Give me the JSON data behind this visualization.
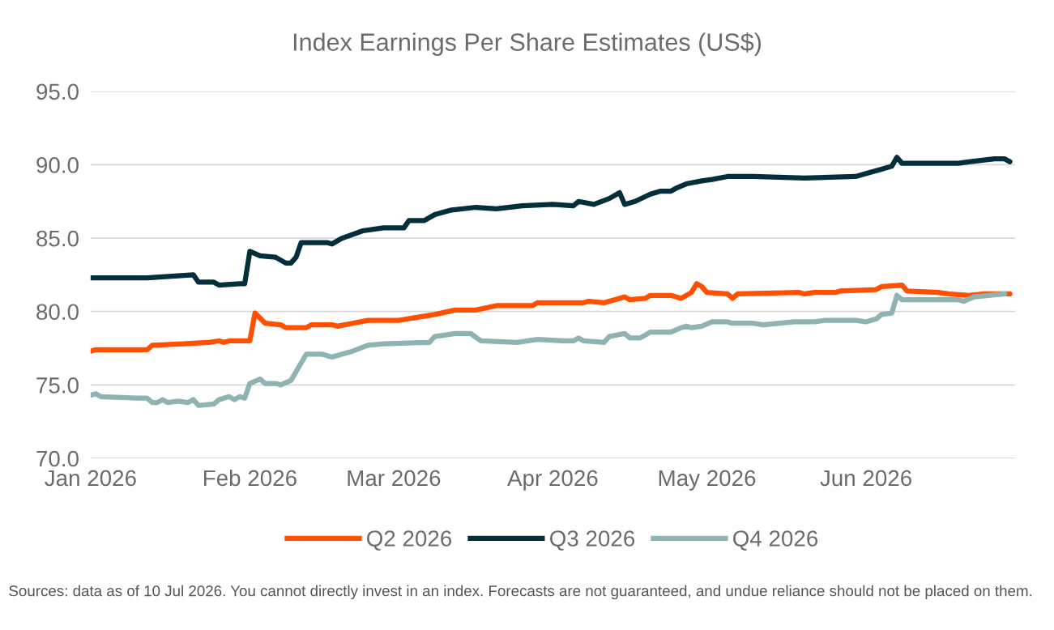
{
  "chart_data": {
    "type": "line",
    "title": "Index Earnings Per Share Estimates (US$)",
    "ylim": [
      70,
      95
    ],
    "yticks": [
      {
        "value": 70,
        "label": "70.0"
      },
      {
        "value": 75,
        "label": "75.0"
      },
      {
        "value": 80,
        "label": "80.0"
      },
      {
        "value": 85,
        "label": "85.0"
      },
      {
        "value": 90,
        "label": "90.0"
      },
      {
        "value": 95,
        "label": "95.0"
      }
    ],
    "xlim": [
      "2026-01-01",
      "2026-06-30"
    ],
    "xticks": [
      {
        "value": "2026-01-01",
        "label": "Jan 2026"
      },
      {
        "value": "2026-02-01",
        "label": "Feb 2026"
      },
      {
        "value": "2026-03-01",
        "label": "Mar 2026"
      },
      {
        "value": "2026-04-01",
        "label": "Apr 2026"
      },
      {
        "value": "2026-05-01",
        "label": "May 2026"
      },
      {
        "value": "2026-06-01",
        "label": "Jun 2026"
      }
    ],
    "grid": "y",
    "legend": "bottom",
    "marker": "none",
    "line_style": "solid",
    "annotations": [
      "Sources: data as of 10 Jul 2026. You cannot directly invest in an index. Forecasts are not guaranteed, and undue reliance should not be placed on them."
    ],
    "series": [
      {
        "name": "Q2 2026",
        "color": "#fe5000",
        "x": [
          "2026-01-01",
          "2026-01-02",
          "2026-01-12",
          "2026-01-13",
          "2026-01-19",
          "2026-01-24",
          "2026-01-26",
          "2026-01-27",
          "2026-01-28",
          "2026-02-01",
          "2026-02-02",
          "2026-02-04",
          "2026-02-07",
          "2026-02-08",
          "2026-02-12",
          "2026-02-13",
          "2026-02-17",
          "2026-02-18",
          "2026-02-21",
          "2026-02-24",
          "2026-03-02",
          "2026-03-09",
          "2026-03-13",
          "2026-03-17",
          "2026-03-21",
          "2026-03-28",
          "2026-03-29",
          "2026-04-07",
          "2026-04-08",
          "2026-04-11",
          "2026-04-14",
          "2026-04-15",
          "2026-04-16",
          "2026-04-19",
          "2026-04-20",
          "2026-04-24",
          "2026-04-26",
          "2026-04-28",
          "2026-04-29",
          "2026-04-30",
          "2026-05-01",
          "2026-05-05",
          "2026-05-06",
          "2026-05-07",
          "2026-05-19",
          "2026-05-20",
          "2026-05-22",
          "2026-05-26",
          "2026-05-27",
          "2026-06-03",
          "2026-06-04",
          "2026-06-08",
          "2026-06-09",
          "2026-06-15",
          "2026-06-17",
          "2026-06-21",
          "2026-06-24",
          "2026-06-29"
        ],
        "values": [
          77.3,
          77.4,
          77.4,
          77.7,
          77.8,
          77.9,
          78.0,
          77.9,
          78.0,
          78.0,
          79.9,
          79.2,
          79.1,
          78.9,
          78.9,
          79.1,
          79.1,
          79.0,
          79.2,
          79.4,
          79.4,
          79.8,
          80.1,
          80.1,
          80.4,
          80.4,
          80.6,
          80.6,
          80.7,
          80.6,
          80.9,
          81.0,
          80.8,
          80.9,
          81.1,
          81.1,
          80.9,
          81.3,
          81.9,
          81.7,
          81.3,
          81.2,
          80.9,
          81.2,
          81.3,
          81.2,
          81.3,
          81.3,
          81.4,
          81.5,
          81.7,
          81.8,
          81.4,
          81.3,
          81.2,
          81.1,
          81.2,
          81.2
        ]
      },
      {
        "name": "Q3 2026",
        "color": "#022f3a",
        "x": [
          "2026-01-01",
          "2026-01-12",
          "2026-01-21",
          "2026-01-22",
          "2026-01-25",
          "2026-01-26",
          "2026-01-30",
          "2026-01-31",
          "2026-02-01",
          "2026-02-03",
          "2026-02-06",
          "2026-02-08",
          "2026-02-09",
          "2026-02-10",
          "2026-02-11",
          "2026-02-16",
          "2026-02-17",
          "2026-02-19",
          "2026-02-23",
          "2026-02-27",
          "2026-03-03",
          "2026-03-04",
          "2026-03-07",
          "2026-03-09",
          "2026-03-12",
          "2026-03-17",
          "2026-03-21",
          "2026-03-26",
          "2026-04-01",
          "2026-04-05",
          "2026-04-06",
          "2026-04-09",
          "2026-04-12",
          "2026-04-14",
          "2026-04-15",
          "2026-04-17",
          "2026-04-20",
          "2026-04-22",
          "2026-04-24",
          "2026-04-25",
          "2026-04-27",
          "2026-04-30",
          "2026-05-02",
          "2026-05-05",
          "2026-05-10",
          "2026-05-20",
          "2026-05-30",
          "2026-06-01",
          "2026-06-04",
          "2026-06-06",
          "2026-06-07",
          "2026-06-08",
          "2026-06-10",
          "2026-06-19",
          "2026-06-21",
          "2026-06-26",
          "2026-06-28",
          "2026-06-29"
        ],
        "values": [
          82.3,
          82.3,
          82.5,
          82.0,
          82.0,
          81.8,
          81.9,
          81.9,
          84.1,
          83.8,
          83.7,
          83.3,
          83.3,
          83.7,
          84.7,
          84.7,
          84.6,
          85.0,
          85.5,
          85.7,
          85.7,
          86.2,
          86.2,
          86.6,
          86.9,
          87.1,
          87.0,
          87.2,
          87.3,
          87.2,
          87.5,
          87.3,
          87.7,
          88.1,
          87.3,
          87.5,
          88.0,
          88.2,
          88.2,
          88.4,
          88.7,
          88.9,
          89.0,
          89.2,
          89.2,
          89.1,
          89.2,
          89.4,
          89.7,
          89.9,
          90.5,
          90.1,
          90.1,
          90.1,
          90.2,
          90.4,
          90.4,
          90.2
        ]
      },
      {
        "name": "Q4 2026",
        "color": "#8fb2b2",
        "x": [
          "2026-01-01",
          "2026-01-02",
          "2026-01-03",
          "2026-01-10",
          "2026-01-12",
          "2026-01-13",
          "2026-01-14",
          "2026-01-15",
          "2026-01-16",
          "2026-01-18",
          "2026-01-20",
          "2026-01-21",
          "2026-01-22",
          "2026-01-25",
          "2026-01-26",
          "2026-01-28",
          "2026-01-29",
          "2026-01-30",
          "2026-01-31",
          "2026-02-01",
          "2026-02-03",
          "2026-02-04",
          "2026-02-06",
          "2026-02-07",
          "2026-02-09",
          "2026-02-10",
          "2026-02-12",
          "2026-02-15",
          "2026-02-17",
          "2026-02-19",
          "2026-02-21",
          "2026-02-24",
          "2026-02-27",
          "2026-03-08",
          "2026-03-09",
          "2026-03-13",
          "2026-03-16",
          "2026-03-18",
          "2026-03-25",
          "2026-03-29",
          "2026-04-03",
          "2026-04-05",
          "2026-04-06",
          "2026-04-07",
          "2026-04-11",
          "2026-04-12",
          "2026-04-15",
          "2026-04-16",
          "2026-04-18",
          "2026-04-20",
          "2026-04-24",
          "2026-04-26",
          "2026-04-27",
          "2026-04-28",
          "2026-04-30",
          "2026-05-02",
          "2026-05-05",
          "2026-05-06",
          "2026-05-10",
          "2026-05-12",
          "2026-05-18",
          "2026-05-22",
          "2026-05-24",
          "2026-05-30",
          "2026-06-01",
          "2026-06-03",
          "2026-06-04",
          "2026-06-06",
          "2026-06-07",
          "2026-06-08",
          "2026-06-19",
          "2026-06-20",
          "2026-06-22",
          "2026-06-28"
        ],
        "values": [
          74.3,
          74.4,
          74.2,
          74.1,
          74.1,
          73.8,
          73.8,
          74.0,
          73.8,
          73.9,
          73.8,
          74.0,
          73.6,
          73.7,
          74.0,
          74.2,
          74.0,
          74.2,
          74.1,
          75.1,
          75.4,
          75.1,
          75.1,
          75.0,
          75.3,
          75.9,
          77.1,
          77.1,
          76.9,
          77.1,
          77.3,
          77.7,
          77.8,
          77.9,
          78.3,
          78.5,
          78.5,
          78.0,
          77.9,
          78.1,
          78.0,
          78.0,
          78.2,
          78.0,
          77.9,
          78.3,
          78.5,
          78.2,
          78.2,
          78.6,
          78.6,
          78.9,
          79.0,
          78.9,
          79.0,
          79.3,
          79.3,
          79.2,
          79.2,
          79.1,
          79.3,
          79.3,
          79.4,
          79.4,
          79.3,
          79.5,
          79.8,
          79.9,
          81.1,
          80.8,
          80.8,
          80.7,
          81.0,
          81.2
        ]
      }
    ]
  }
}
